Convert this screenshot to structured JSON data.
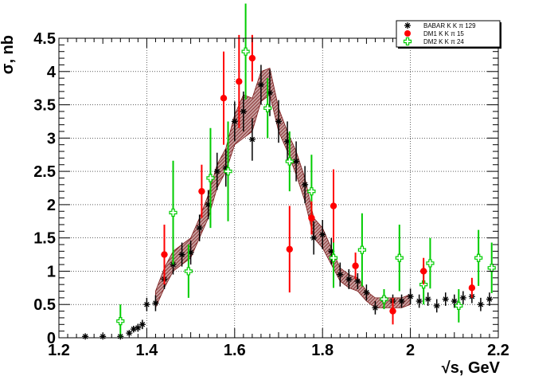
{
  "chart_data": {
    "type": "scatter",
    "title": "",
    "xlabel": "√s, GeV",
    "ylabel": "σ, nb",
    "xlim": [
      1.2,
      2.2
    ],
    "ylim": [
      0,
      4.5
    ],
    "grid": true,
    "legend_position": "top-right",
    "x_ticks": [
      "1.2",
      "1.4",
      "1.6",
      "1.8",
      "2",
      "2.2"
    ],
    "y_ticks": [
      "0",
      "0.5",
      "1",
      "1.5",
      "2",
      "2.5",
      "3",
      "3.5",
      "4",
      "4.5"
    ],
    "colors": {
      "babar": "#000000",
      "dm1": "#ff0000",
      "dm2": "#00cc00",
      "band": "#7a1a1a"
    },
    "series": [
      {
        "name": "BABAR K_{S}K^{±}π^{∓} 129",
        "legend_label": "BABAR K K  π  129",
        "marker": "star",
        "points": [
          {
            "x": 1.26,
            "y": 0.02,
            "e": 0.02
          },
          {
            "x": 1.3,
            "y": 0.02,
            "e": 0.02
          },
          {
            "x": 1.34,
            "y": 0.02,
            "e": 0.03
          },
          {
            "x": 1.36,
            "y": 0.07,
            "e": 0.04
          },
          {
            "x": 1.37,
            "y": 0.13,
            "e": 0.05
          },
          {
            "x": 1.38,
            "y": 0.15,
            "e": 0.06
          },
          {
            "x": 1.39,
            "y": 0.2,
            "e": 0.07
          },
          {
            "x": 1.4,
            "y": 0.5,
            "e": 0.1
          },
          {
            "x": 1.42,
            "y": 0.52,
            "e": 0.12
          },
          {
            "x": 1.44,
            "y": 0.88,
            "e": 0.15
          },
          {
            "x": 1.46,
            "y": 1.1,
            "e": 0.15
          },
          {
            "x": 1.48,
            "y": 1.25,
            "e": 0.18
          },
          {
            "x": 1.5,
            "y": 1.28,
            "e": 0.18
          },
          {
            "x": 1.52,
            "y": 1.65,
            "e": 0.2
          },
          {
            "x": 1.54,
            "y": 2.0,
            "e": 0.22
          },
          {
            "x": 1.56,
            "y": 2.5,
            "e": 0.28
          },
          {
            "x": 1.58,
            "y": 2.55,
            "e": 0.28
          },
          {
            "x": 1.6,
            "y": 3.25,
            "e": 0.3
          },
          {
            "x": 1.62,
            "y": 3.4,
            "e": 0.3
          },
          {
            "x": 1.64,
            "y": 2.98,
            "e": 0.32
          },
          {
            "x": 1.66,
            "y": 3.8,
            "e": 0.3
          },
          {
            "x": 1.68,
            "y": 3.68,
            "e": 0.35
          },
          {
            "x": 1.7,
            "y": 3.25,
            "e": 0.32
          },
          {
            "x": 1.72,
            "y": 2.95,
            "e": 0.3
          },
          {
            "x": 1.74,
            "y": 2.65,
            "e": 0.3
          },
          {
            "x": 1.76,
            "y": 2.3,
            "e": 0.28
          },
          {
            "x": 1.78,
            "y": 1.5,
            "e": 0.25
          },
          {
            "x": 1.8,
            "y": 1.55,
            "e": 0.22
          },
          {
            "x": 1.82,
            "y": 1.3,
            "e": 0.2
          },
          {
            "x": 1.84,
            "y": 0.95,
            "e": 0.18
          },
          {
            "x": 1.86,
            "y": 0.88,
            "e": 0.15
          },
          {
            "x": 1.88,
            "y": 0.85,
            "e": 0.12
          },
          {
            "x": 1.9,
            "y": 0.68,
            "e": 0.12
          },
          {
            "x": 1.92,
            "y": 0.45,
            "e": 0.1
          },
          {
            "x": 1.94,
            "y": 0.58,
            "e": 0.1
          },
          {
            "x": 1.96,
            "y": 0.55,
            "e": 0.1
          },
          {
            "x": 1.98,
            "y": 0.55,
            "e": 0.1
          },
          {
            "x": 2.0,
            "y": 0.62,
            "e": 0.12
          },
          {
            "x": 2.02,
            "y": 0.55,
            "e": 0.1
          },
          {
            "x": 2.04,
            "y": 0.58,
            "e": 0.1
          },
          {
            "x": 2.06,
            "y": 0.48,
            "e": 0.1
          },
          {
            "x": 2.08,
            "y": 0.58,
            "e": 0.1
          },
          {
            "x": 2.1,
            "y": 0.55,
            "e": 0.1
          },
          {
            "x": 2.12,
            "y": 0.6,
            "e": 0.1
          },
          {
            "x": 2.14,
            "y": 0.62,
            "e": 0.1
          },
          {
            "x": 2.16,
            "y": 0.5,
            "e": 0.1
          },
          {
            "x": 2.18,
            "y": 0.58,
            "e": 0.1
          }
        ]
      },
      {
        "name": "DM1 K_{S}K^{±}π^{∓} 15",
        "legend_label": "DM1 K K  π  15",
        "marker": "filled-circle",
        "points": [
          {
            "x": 1.44,
            "y": 1.25,
            "e": 0.45
          },
          {
            "x": 1.525,
            "y": 2.2,
            "e": 0.4
          },
          {
            "x": 1.575,
            "y": 3.6,
            "e": 0.7
          },
          {
            "x": 1.61,
            "y": 3.85,
            "e": 0.7
          },
          {
            "x": 1.64,
            "y": 4.2,
            "e": 0.35
          },
          {
            "x": 1.725,
            "y": 1.33,
            "e": 0.65
          },
          {
            "x": 1.775,
            "y": 1.8,
            "e": 0.25
          },
          {
            "x": 1.825,
            "y": 1.98,
            "e": 0.55
          },
          {
            "x": 1.875,
            "y": 1.08,
            "e": 0.2
          },
          {
            "x": 1.96,
            "y": 0.4,
            "e": 0.2
          },
          {
            "x": 2.03,
            "y": 1.0,
            "e": 0.2
          },
          {
            "x": 2.14,
            "y": 0.75,
            "e": 0.15
          }
        ]
      },
      {
        "name": "DM2 K_{S}K^{±}π^{∓} 24",
        "legend_label": "DM2 K K  π  24",
        "marker": "open-cross",
        "points": [
          {
            "x": 1.34,
            "y": 0.25,
            "e": 0.25
          },
          {
            "x": 1.46,
            "y": 1.88,
            "e": 0.78
          },
          {
            "x": 1.495,
            "y": 1.0,
            "e": 0.4
          },
          {
            "x": 1.545,
            "y": 2.4,
            "e": 0.75
          },
          {
            "x": 1.585,
            "y": 2.5,
            "e": 0.75
          },
          {
            "x": 1.625,
            "y": 4.3,
            "e": 0.72
          },
          {
            "x": 1.675,
            "y": 3.45,
            "e": 0.45
          },
          {
            "x": 1.725,
            "y": 2.65,
            "e": 0.45
          },
          {
            "x": 1.775,
            "y": 2.2,
            "e": 0.55
          },
          {
            "x": 1.825,
            "y": 1.2,
            "e": 0.45
          },
          {
            "x": 1.89,
            "y": 1.32,
            "e": 0.55
          },
          {
            "x": 1.94,
            "y": 0.58,
            "e": 0.15
          },
          {
            "x": 1.975,
            "y": 1.2,
            "e": 0.5
          },
          {
            "x": 2.03,
            "y": 0.8,
            "e": 0.3
          },
          {
            "x": 2.045,
            "y": 1.12,
            "e": 0.38
          },
          {
            "x": 2.11,
            "y": 0.48,
            "e": 0.25
          },
          {
            "x": 2.155,
            "y": 1.2,
            "e": 0.42
          },
          {
            "x": 2.185,
            "y": 1.05,
            "e": 0.38
          }
        ]
      }
    ],
    "fit_band": {
      "x": [
        1.42,
        1.44,
        1.46,
        1.48,
        1.5,
        1.52,
        1.54,
        1.56,
        1.58,
        1.6,
        1.62,
        1.64,
        1.66,
        1.68,
        1.7,
        1.72,
        1.74,
        1.76,
        1.78,
        1.8,
        1.82,
        1.84,
        1.86,
        1.88,
        1.9,
        1.92,
        1.94,
        1.96,
        1.98,
        2.0
      ],
      "lo": [
        0.45,
        0.75,
        1.0,
        1.1,
        1.2,
        1.5,
        1.8,
        2.25,
        2.5,
        2.9,
        3.0,
        3.1,
        3.55,
        3.65,
        3.1,
        2.8,
        2.45,
        2.05,
        1.5,
        1.35,
        1.1,
        0.85,
        0.75,
        0.7,
        0.55,
        0.45,
        0.45,
        0.45,
        0.45,
        0.5
      ],
      "hi": [
        0.7,
        1.05,
        1.3,
        1.4,
        1.5,
        1.8,
        2.15,
        2.6,
        2.85,
        3.35,
        3.65,
        3.6,
        4.0,
        4.05,
        3.45,
        3.1,
        2.8,
        2.4,
        1.8,
        1.65,
        1.35,
        1.05,
        0.95,
        0.9,
        0.7,
        0.6,
        0.6,
        0.6,
        0.6,
        0.65
      ]
    }
  }
}
